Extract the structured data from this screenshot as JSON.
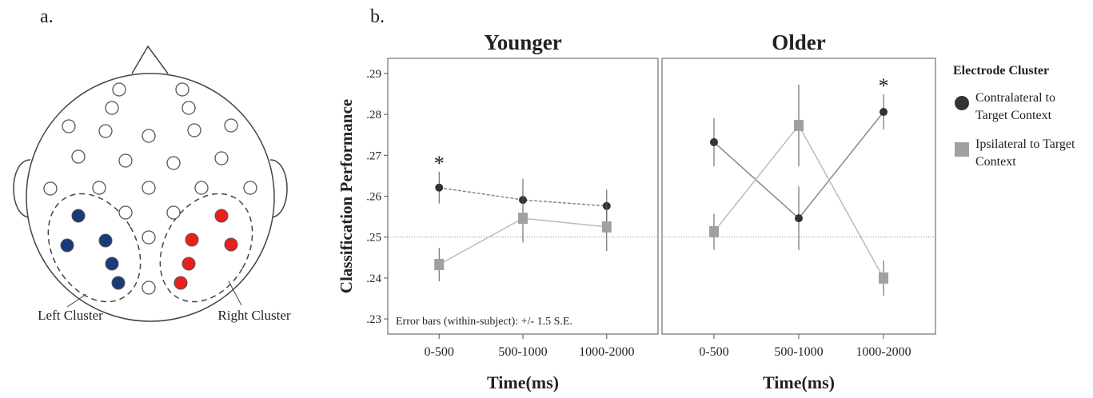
{
  "panel_a": {
    "label": "a.",
    "left_cluster": "Left Cluster",
    "right_cluster": "Right Cluster"
  },
  "panel_b": {
    "label": "b."
  },
  "chart_data": [
    {
      "type": "line",
      "title": "Younger",
      "y_label": "Classification Performance",
      "x_label": "Time(ms)",
      "categories": [
        "0-500",
        "500-1000",
        "1000-2000"
      ],
      "series": [
        {
          "color": "#333333",
          "marker": "circle",
          "line_color": "#888888",
          "dashed": true,
          "values": [
            0.2621,
            0.2591,
            0.2576
          ],
          "errors": [
            0.0039,
            0.0052,
            0.004
          ]
        },
        {
          "color": "#a0a0a0",
          "marker": "square",
          "line_color": "#bbbbbb",
          "dashed": false,
          "values": [
            0.2433,
            0.2546,
            0.2525
          ],
          "errors": [
            0.0041,
            0.0059,
            0.0059
          ]
        }
      ],
      "ylim": [
        0.2263,
        0.2937
      ],
      "yticks": [
        {
          "value": 0.23,
          "label": ".23"
        },
        {
          "value": 0.24,
          "label": ".24"
        },
        {
          "value": 0.25,
          "label": ".25"
        },
        {
          "value": 0.26,
          "label": ".26"
        },
        {
          "value": 0.27,
          "label": ".27"
        },
        {
          "value": 0.28,
          "label": ".28"
        },
        {
          "value": 0.29,
          "label": ".29"
        }
      ],
      "reference_line": 0.25,
      "annotations": [
        {
          "text": "*",
          "x": "0-500"
        }
      ],
      "note": "Error bars (within-subject): +/- 1.5 S.E."
    },
    {
      "type": "line",
      "title": "Older",
      "x_label": "Time(ms)",
      "categories": [
        "0-500",
        "500-1000",
        "1000-2000"
      ],
      "series": [
        {
          "name": "Contralateral to Target Context",
          "color": "#333333",
          "marker": "circle",
          "line_color": "#888888",
          "dashed": false,
          "values": [
            0.2732,
            0.2546,
            0.2806
          ],
          "errors": [
            0.0059,
            0.0078,
            0.0043
          ]
        },
        {
          "name": "Ipsilateral to Target Context",
          "color": "#a0a0a0",
          "marker": "square",
          "line_color": "#bbbbbb",
          "dashed": false,
          "values": [
            0.2513,
            0.2773,
            0.24
          ],
          "errors": [
            0.0044,
            0.01,
            0.0043
          ]
        }
      ],
      "ylim": [
        0.2263,
        0.2937
      ],
      "reference_line": 0.25,
      "annotations": [
        {
          "text": "*",
          "x": "1000-2000"
        }
      ],
      "legend_title": "Electrode Cluster"
    }
  ]
}
